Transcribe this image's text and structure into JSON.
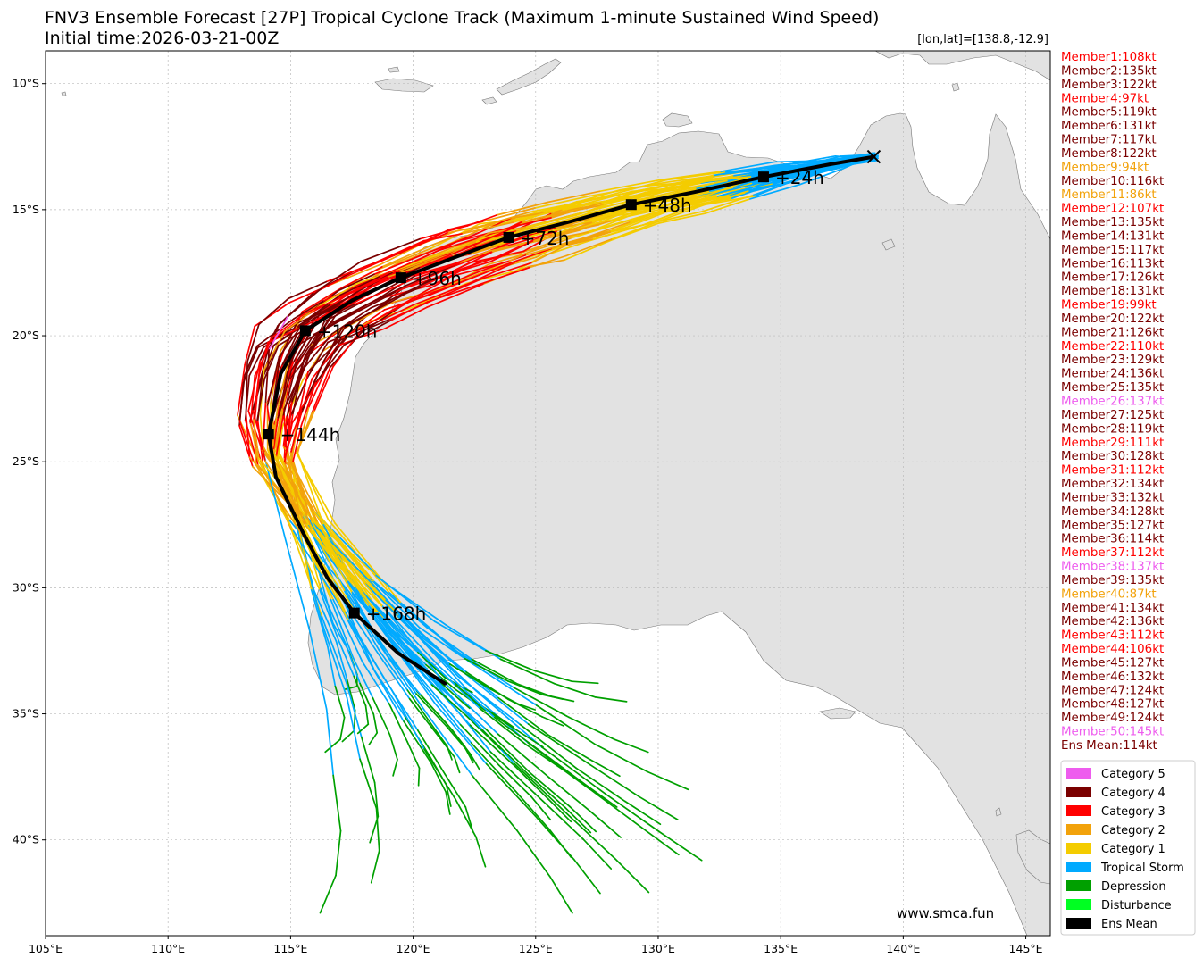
{
  "title": {
    "line1": "FNV3 Ensemble Forecast [27P] Tropical Cyclone Track (Maximum 1-minute Sustained Wind Speed)",
    "line2": "Initial time:2026-03-21-00Z",
    "coord": "[lon,lat]=[138.8,-12.9]"
  },
  "watermark": "www.smca.fun",
  "axes": {
    "x_ticks": [
      "105°E",
      "110°E",
      "115°E",
      "120°E",
      "125°E",
      "130°E",
      "135°E",
      "140°E",
      "145°E"
    ],
    "x_values": [
      105,
      110,
      115,
      120,
      125,
      130,
      135,
      140,
      145
    ],
    "y_ticks": [
      "10°S",
      "15°S",
      "20°S",
      "25°S",
      "30°S",
      "35°S",
      "40°S"
    ],
    "y_values": [
      -10,
      -15,
      -20,
      -25,
      -30,
      -35,
      -40
    ],
    "lon_range": [
      105,
      146
    ],
    "lat_range": [
      -43.8,
      -8.7
    ]
  },
  "colors": {
    "cat5": "#ee5cee",
    "cat4": "#7a0000",
    "cat3": "#ff0000",
    "cat2": "#f2a20b",
    "cat1": "#f4cc00",
    "ts": "#00aaff",
    "td": "#00a000",
    "dist": "#00ff22",
    "mean": "#000000",
    "land": "#e2e2e2"
  },
  "members": [
    {
      "label": "Member1:108kt",
      "cat": "cat3"
    },
    {
      "label": "Member2:135kt",
      "cat": "cat4"
    },
    {
      "label": "Member3:122kt",
      "cat": "cat4"
    },
    {
      "label": "Member4:97kt",
      "cat": "cat3"
    },
    {
      "label": "Member5:119kt",
      "cat": "cat4"
    },
    {
      "label": "Member6:131kt",
      "cat": "cat4"
    },
    {
      "label": "Member7:117kt",
      "cat": "cat4"
    },
    {
      "label": "Member8:122kt",
      "cat": "cat4"
    },
    {
      "label": "Member9:94kt",
      "cat": "cat2"
    },
    {
      "label": "Member10:116kt",
      "cat": "cat4"
    },
    {
      "label": "Member11:86kt",
      "cat": "cat2"
    },
    {
      "label": "Member12:107kt",
      "cat": "cat3"
    },
    {
      "label": "Member13:135kt",
      "cat": "cat4"
    },
    {
      "label": "Member14:131kt",
      "cat": "cat4"
    },
    {
      "label": "Member15:117kt",
      "cat": "cat4"
    },
    {
      "label": "Member16:113kt",
      "cat": "cat4"
    },
    {
      "label": "Member17:126kt",
      "cat": "cat4"
    },
    {
      "label": "Member18:131kt",
      "cat": "cat4"
    },
    {
      "label": "Member19:99kt",
      "cat": "cat3"
    },
    {
      "label": "Member20:122kt",
      "cat": "cat4"
    },
    {
      "label": "Member21:126kt",
      "cat": "cat4"
    },
    {
      "label": "Member22:110kt",
      "cat": "cat3"
    },
    {
      "label": "Member23:129kt",
      "cat": "cat4"
    },
    {
      "label": "Member24:136kt",
      "cat": "cat4"
    },
    {
      "label": "Member25:135kt",
      "cat": "cat4"
    },
    {
      "label": "Member26:137kt",
      "cat": "cat5"
    },
    {
      "label": "Member27:125kt",
      "cat": "cat4"
    },
    {
      "label": "Member28:119kt",
      "cat": "cat4"
    },
    {
      "label": "Member29:111kt",
      "cat": "cat3"
    },
    {
      "label": "Member30:128kt",
      "cat": "cat4"
    },
    {
      "label": "Member31:112kt",
      "cat": "cat3"
    },
    {
      "label": "Member32:134kt",
      "cat": "cat4"
    },
    {
      "label": "Member33:132kt",
      "cat": "cat4"
    },
    {
      "label": "Member34:128kt",
      "cat": "cat4"
    },
    {
      "label": "Member35:127kt",
      "cat": "cat4"
    },
    {
      "label": "Member36:114kt",
      "cat": "cat4"
    },
    {
      "label": "Member37:112kt",
      "cat": "cat3"
    },
    {
      "label": "Member38:137kt",
      "cat": "cat5"
    },
    {
      "label": "Member39:135kt",
      "cat": "cat4"
    },
    {
      "label": "Member40:87kt",
      "cat": "cat2"
    },
    {
      "label": "Member41:134kt",
      "cat": "cat4"
    },
    {
      "label": "Member42:136kt",
      "cat": "cat4"
    },
    {
      "label": "Member43:112kt",
      "cat": "cat3"
    },
    {
      "label": "Member44:106kt",
      "cat": "cat3"
    },
    {
      "label": "Member45:127kt",
      "cat": "cat4"
    },
    {
      "label": "Member46:132kt",
      "cat": "cat4"
    },
    {
      "label": "Member47:124kt",
      "cat": "cat4"
    },
    {
      "label": "Member48:127kt",
      "cat": "cat4"
    },
    {
      "label": "Member49:124kt",
      "cat": "cat4"
    },
    {
      "label": "Member50:145kt",
      "cat": "cat5"
    },
    {
      "label": "Ens Mean:114kt",
      "cat": "cat4"
    }
  ],
  "legend": [
    {
      "label": "Category 5",
      "color": "#ee5cee"
    },
    {
      "label": "Category 4",
      "color": "#7a0000"
    },
    {
      "label": "Category 3",
      "color": "#ff0000"
    },
    {
      "label": "Category 2",
      "color": "#f2a20b"
    },
    {
      "label": "Category 1",
      "color": "#f4cc00"
    },
    {
      "label": "Tropical Storm",
      "color": "#00aaff"
    },
    {
      "label": "Depression",
      "color": "#00a000"
    },
    {
      "label": "Disturbance",
      "color": "#00ff22"
    },
    {
      "label": "Ens Mean",
      "color": "#000000"
    }
  ],
  "ens_mean": {
    "track": [
      [
        138.8,
        -12.9
      ],
      [
        137.0,
        -13.2
      ],
      [
        134.3,
        -13.7
      ],
      [
        131.5,
        -14.3
      ],
      [
        128.9,
        -14.8
      ],
      [
        126.3,
        -15.5
      ],
      [
        123.9,
        -16.1
      ],
      [
        122.5,
        -16.6
      ],
      [
        119.5,
        -17.7
      ],
      [
        117.5,
        -18.6
      ],
      [
        115.6,
        -19.8
      ],
      [
        114.6,
        -21.5
      ],
      [
        114.1,
        -23.9
      ],
      [
        114.4,
        -25.6
      ],
      [
        115.5,
        -27.8
      ],
      [
        116.5,
        -29.6
      ],
      [
        117.6,
        -31.0
      ],
      [
        119.4,
        -32.6
      ],
      [
        121.3,
        -33.8
      ]
    ],
    "markers": [
      {
        "lon": 134.3,
        "lat": -13.7,
        "label": "+24h"
      },
      {
        "lon": 128.9,
        "lat": -14.8,
        "label": "+48h"
      },
      {
        "lon": 123.9,
        "lat": -16.1,
        "label": "+72h"
      },
      {
        "lon": 119.5,
        "lat": -17.7,
        "label": "+96h"
      },
      {
        "lon": 115.6,
        "lat": -19.8,
        "label": "+120h"
      },
      {
        "lon": 114.1,
        "lat": -23.9,
        "label": "+144h"
      },
      {
        "lon": 117.6,
        "lat": -31.0,
        "label": "+168h"
      }
    ],
    "start": {
      "lon": 138.8,
      "lat": -12.9
    }
  }
}
